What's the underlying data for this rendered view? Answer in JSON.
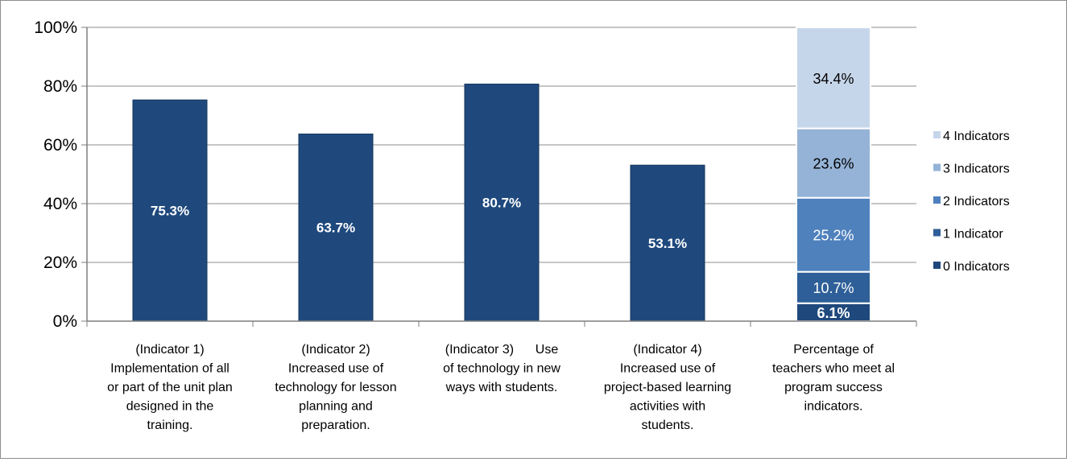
{
  "chart_data": {
    "type": "bar",
    "ylim": [
      0,
      100
    ],
    "yticks": [
      "0%",
      "20%",
      "40%",
      "60%",
      "80%",
      "100%"
    ],
    "ytick_values": [
      0,
      20,
      40,
      60,
      80,
      100
    ],
    "grid": true,
    "legend_position": "right",
    "categories": [
      [
        "(Indicator 1)",
        "Implementation of all",
        "or part of the unit plan",
        "designed in the",
        "training."
      ],
      [
        "(Indicator 2)",
        "Increased use of",
        "technology for lesson",
        "planning and",
        "preparation."
      ],
      [
        "(Indicator 3)      Use",
        "of technology in new",
        "ways with students."
      ],
      [
        "(Indicator 4)",
        "Increased use of",
        "project-based learning",
        "activities with",
        "students."
      ],
      [
        "Percentage of",
        "teachers who meet al",
        "program success",
        "indicators."
      ]
    ],
    "single_bars": [
      {
        "value": 75.3,
        "label": "75.3%"
      },
      {
        "value": 63.7,
        "label": "63.7%"
      },
      {
        "value": 80.7,
        "label": "80.7%"
      },
      {
        "value": 53.1,
        "label": "53.1%"
      }
    ],
    "stacked_bar": {
      "series": [
        {
          "name": "0 Indicators",
          "value": 6.1,
          "label": "6.1%",
          "color": "#1f497d",
          "text_color": "#ffffff"
        },
        {
          "name": "1 Indicator",
          "value": 10.7,
          "label": "10.7%",
          "color": "#2e5f98",
          "text_color": "#ffffff"
        },
        {
          "name": "2 Indicators",
          "value": 25.2,
          "label": "25.2%",
          "color": "#4f81bd",
          "text_color": "#ffffff"
        },
        {
          "name": "3 Indicators",
          "value": 23.6,
          "label": "23.6%",
          "color": "#95b3d7",
          "text_color": "#000000"
        },
        {
          "name": "4 Indicators",
          "value": 34.4,
          "label": "34.4%",
          "color": "#c6d6ea",
          "text_color": "#000000"
        }
      ]
    },
    "colors": {
      "bar": "#1f497d",
      "grid": "#8c8c8c",
      "axis": "#7f7f7f"
    }
  }
}
